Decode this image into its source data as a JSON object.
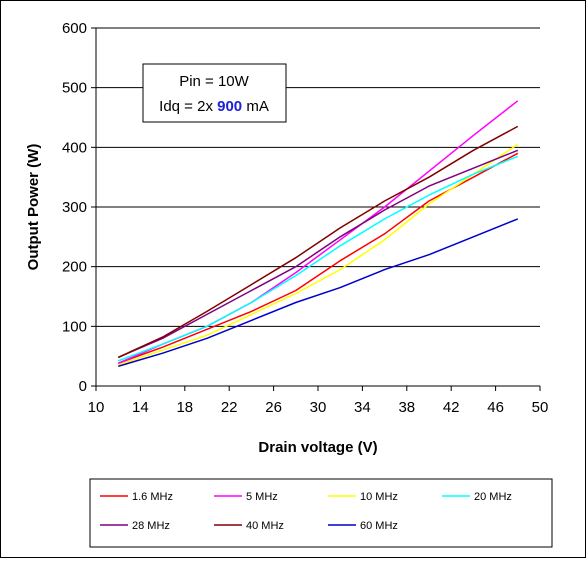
{
  "chart_data": {
    "type": "line",
    "xlabel": "Drain voltage (V)",
    "ylabel": "Output Power (W)",
    "xlim": [
      10,
      50
    ],
    "ylim": [
      0,
      600
    ],
    "xticks": [
      10,
      14,
      18,
      22,
      26,
      30,
      34,
      38,
      42,
      46,
      50
    ],
    "yticks": [
      0,
      100,
      200,
      300,
      400,
      500,
      600
    ],
    "grid": "horizontal",
    "legend_position": "bottom",
    "annotation": {
      "line1": "Pin = 10W",
      "line2_prefix": "Idq = 2x ",
      "line2_value": "900",
      "line2_suffix": " mA"
    },
    "series": [
      {
        "name": "1.6 MHz",
        "color": "#ff0000",
        "x": [
          12,
          16,
          20,
          24,
          28,
          32,
          36,
          40,
          44,
          48
        ],
        "y": [
          38,
          65,
          95,
          125,
          160,
          210,
          255,
          310,
          350,
          390
        ]
      },
      {
        "name": "5 MHz",
        "color": "#ff00ff",
        "x": [
          12,
          16,
          20,
          24,
          28,
          32,
          36,
          40,
          44,
          48
        ],
        "y": [
          38,
          70,
          100,
          140,
          190,
          245,
          300,
          360,
          420,
          478
        ]
      },
      {
        "name": "10 MHz",
        "color": "#ffff00",
        "x": [
          12,
          16,
          20,
          24,
          28,
          32,
          36,
          40,
          44,
          48
        ],
        "y": [
          35,
          60,
          85,
          120,
          155,
          195,
          245,
          305,
          355,
          405
        ]
      },
      {
        "name": "20 MHz",
        "color": "#00ffff",
        "x": [
          12,
          16,
          20,
          24,
          28,
          32,
          36,
          40,
          44,
          48
        ],
        "y": [
          42,
          70,
          100,
          140,
          185,
          235,
          280,
          320,
          355,
          385
        ]
      },
      {
        "name": "28 MHz",
        "color": "#800080",
        "x": [
          12,
          16,
          20,
          24,
          28,
          32,
          36,
          40,
          44,
          48
        ],
        "y": [
          48,
          80,
          120,
          160,
          200,
          250,
          295,
          335,
          365,
          395
        ]
      },
      {
        "name": "40 MHz",
        "color": "#800000",
        "x": [
          12,
          16,
          20,
          24,
          28,
          32,
          36,
          40,
          44,
          48
        ],
        "y": [
          48,
          82,
          125,
          170,
          215,
          265,
          310,
          350,
          395,
          435
        ]
      },
      {
        "name": "60 MHz",
        "color": "#0000cc",
        "x": [
          12,
          16,
          20,
          24,
          28,
          32,
          36,
          40,
          44,
          48
        ],
        "y": [
          33,
          55,
          80,
          110,
          140,
          165,
          195,
          220,
          250,
          280
        ]
      }
    ]
  }
}
